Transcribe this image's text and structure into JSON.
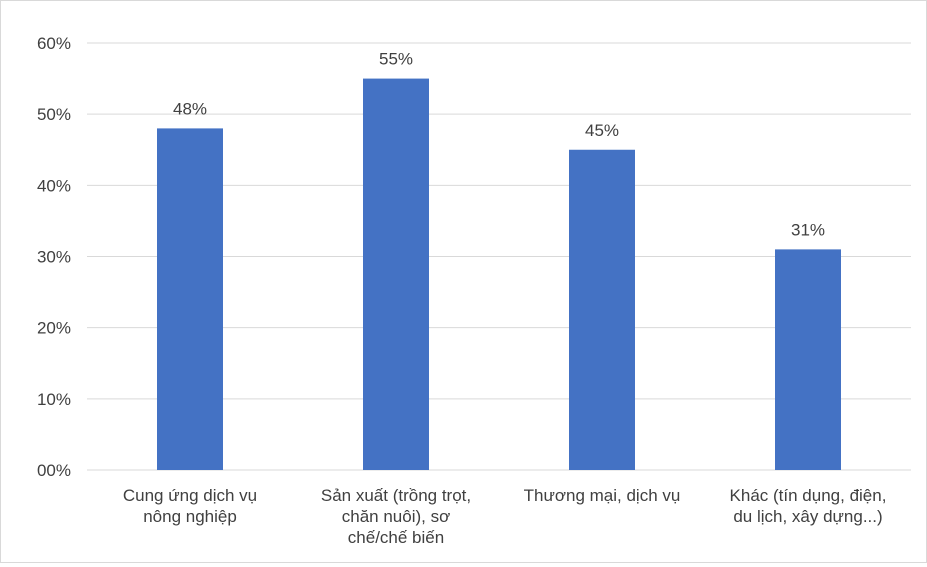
{
  "chart_data": {
    "type": "bar",
    "title": "",
    "xlabel": "",
    "ylabel": "",
    "categories": [
      [
        "Cung ứng dịch vụ",
        "nông nghiệp"
      ],
      [
        "Sản xuất (trồng trọt,",
        "chăn nuôi), sơ",
        "chế/chế biến"
      ],
      [
        "Thương mại, dịch vụ"
      ],
      [
        "Khác (tín dụng, điện,",
        "du lịch, xây dựng...)"
      ]
    ],
    "values": [
      48,
      55,
      45,
      31
    ],
    "value_labels": [
      "48%",
      "55%",
      "45%",
      "31%"
    ],
    "ylim": [
      0,
      60
    ],
    "yticks": [
      0,
      10,
      20,
      30,
      40,
      50,
      60
    ],
    "ytick_labels": [
      "00%",
      "10%",
      "20%",
      "30%",
      "40%",
      "50%",
      "60%"
    ],
    "grid": true,
    "legend": "none",
    "colors": {
      "bar": "#4472c4",
      "grid": "#d9d9d9",
      "text": "#404040"
    }
  }
}
